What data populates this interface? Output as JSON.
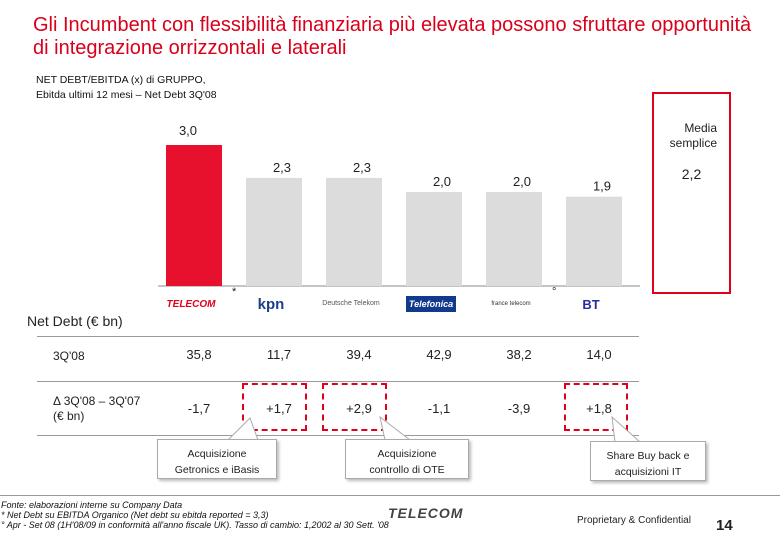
{
  "title": "Gli Incumbent con flessibilità finanziaria più elevata possono sfruttare opportunità di integrazione orrizzontali e laterali",
  "subtitle_line1": "NET DEBT/EBITDA (x) di GRUPPO,",
  "subtitle_line2": "Ebitda ultimi 12 mesi – Net Debt 3Q'08",
  "media": {
    "label_line1": "Media",
    "label_line2": "semplice",
    "value": "2,2"
  },
  "chart_data": {
    "type": "bar",
    "categories": [
      "Telecom Italia",
      "KPN",
      "Deutsche Telekom",
      "Telefonica",
      "France Telecom",
      "BT"
    ],
    "values": [
      3.0,
      2.3,
      2.3,
      2.0,
      2.0,
      1.9
    ],
    "value_labels": [
      "3,0",
      "2,3",
      "2,3",
      "2,0",
      "2,0",
      "1,9"
    ],
    "highlight_color": "#e8112d",
    "bar_color": "#dcdcdc",
    "average": 2.2
  },
  "logos": [
    {
      "name": "telecom-logo",
      "text": "TELECOM",
      "mark": ""
    },
    {
      "name": "kpn-logo",
      "text": "kpn",
      "mark": "*"
    },
    {
      "name": "deutsche-telekom-logo",
      "text": "Deutsche Telekom",
      "mark": ""
    },
    {
      "name": "telefonica-logo",
      "text": "Telefonica",
      "mark": ""
    },
    {
      "name": "france-telecom-logo",
      "text": "france telecom",
      "mark": ""
    },
    {
      "name": "bt-logo",
      "text": "BT",
      "mark": "°"
    }
  ],
  "table": {
    "title": "Net Debt (€ bn)",
    "row1_label": "3Q'08",
    "row1": [
      "35,8",
      "11,7",
      "39,4",
      "42,9",
      "38,2",
      "14,0"
    ],
    "row2_label_line1": "Δ 3Q'08 – 3Q'07",
    "row2_label_line2": "(€ bn)",
    "row2": [
      "-1,7",
      "+1,7",
      "+2,9",
      "-1,1",
      "-3,9",
      "+1,8"
    ]
  },
  "callouts": [
    {
      "line1": "Acquisizione",
      "line2": "Getronics e iBasis"
    },
    {
      "line1": "Acquisizione",
      "line2": "controllo di OTE"
    },
    {
      "line1": "Share Buy back e",
      "line2": "acquisizioni IT"
    }
  ],
  "footer": {
    "source": "Fonte: elaborazioni interne su Company Data",
    "note1": "* Net Debt su EBITDA Organico (Net debt su ebitda reported = 3,3)",
    "note2": "° Apr - Set 08 (1H'08/09 in conformità all'anno fiscale UK).   Tasso di cambio: 1,2002 al 30 Sett. '08",
    "brand": "TELECOM",
    "confidential": "Proprietary  & Confidential",
    "page": "14"
  }
}
